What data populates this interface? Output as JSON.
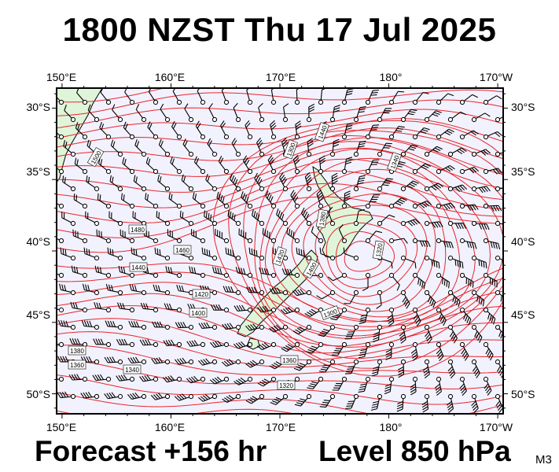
{
  "title": "1800 NZST Thu 17 Jul 2025",
  "footer": {
    "forecast": "Forecast +156 hr",
    "level": "Level 850 hPa",
    "model": "M3"
  },
  "colors": {
    "contour": "#e8262a",
    "ocean": "#f2f2fe",
    "land": "#dff5d9",
    "frame": "#000000"
  },
  "axes": {
    "lon_ticks": [
      "150°E",
      "160°E",
      "170°E",
      "180°",
      "170°W"
    ],
    "lat_ticks": [
      "30°S",
      "35°S",
      "40°S",
      "45°S",
      "50°S"
    ]
  },
  "contour_labels": [
    "1500",
    "1480",
    "1460",
    "1440",
    "1420",
    "1400",
    "1380",
    "1360",
    "1340",
    "1320",
    "1300",
    "1440",
    "1420",
    "1400",
    "1360",
    "1320",
    "1340",
    "1300",
    "1380"
  ],
  "low_center": {
    "lon": 177.5,
    "lat": -40.5
  }
}
